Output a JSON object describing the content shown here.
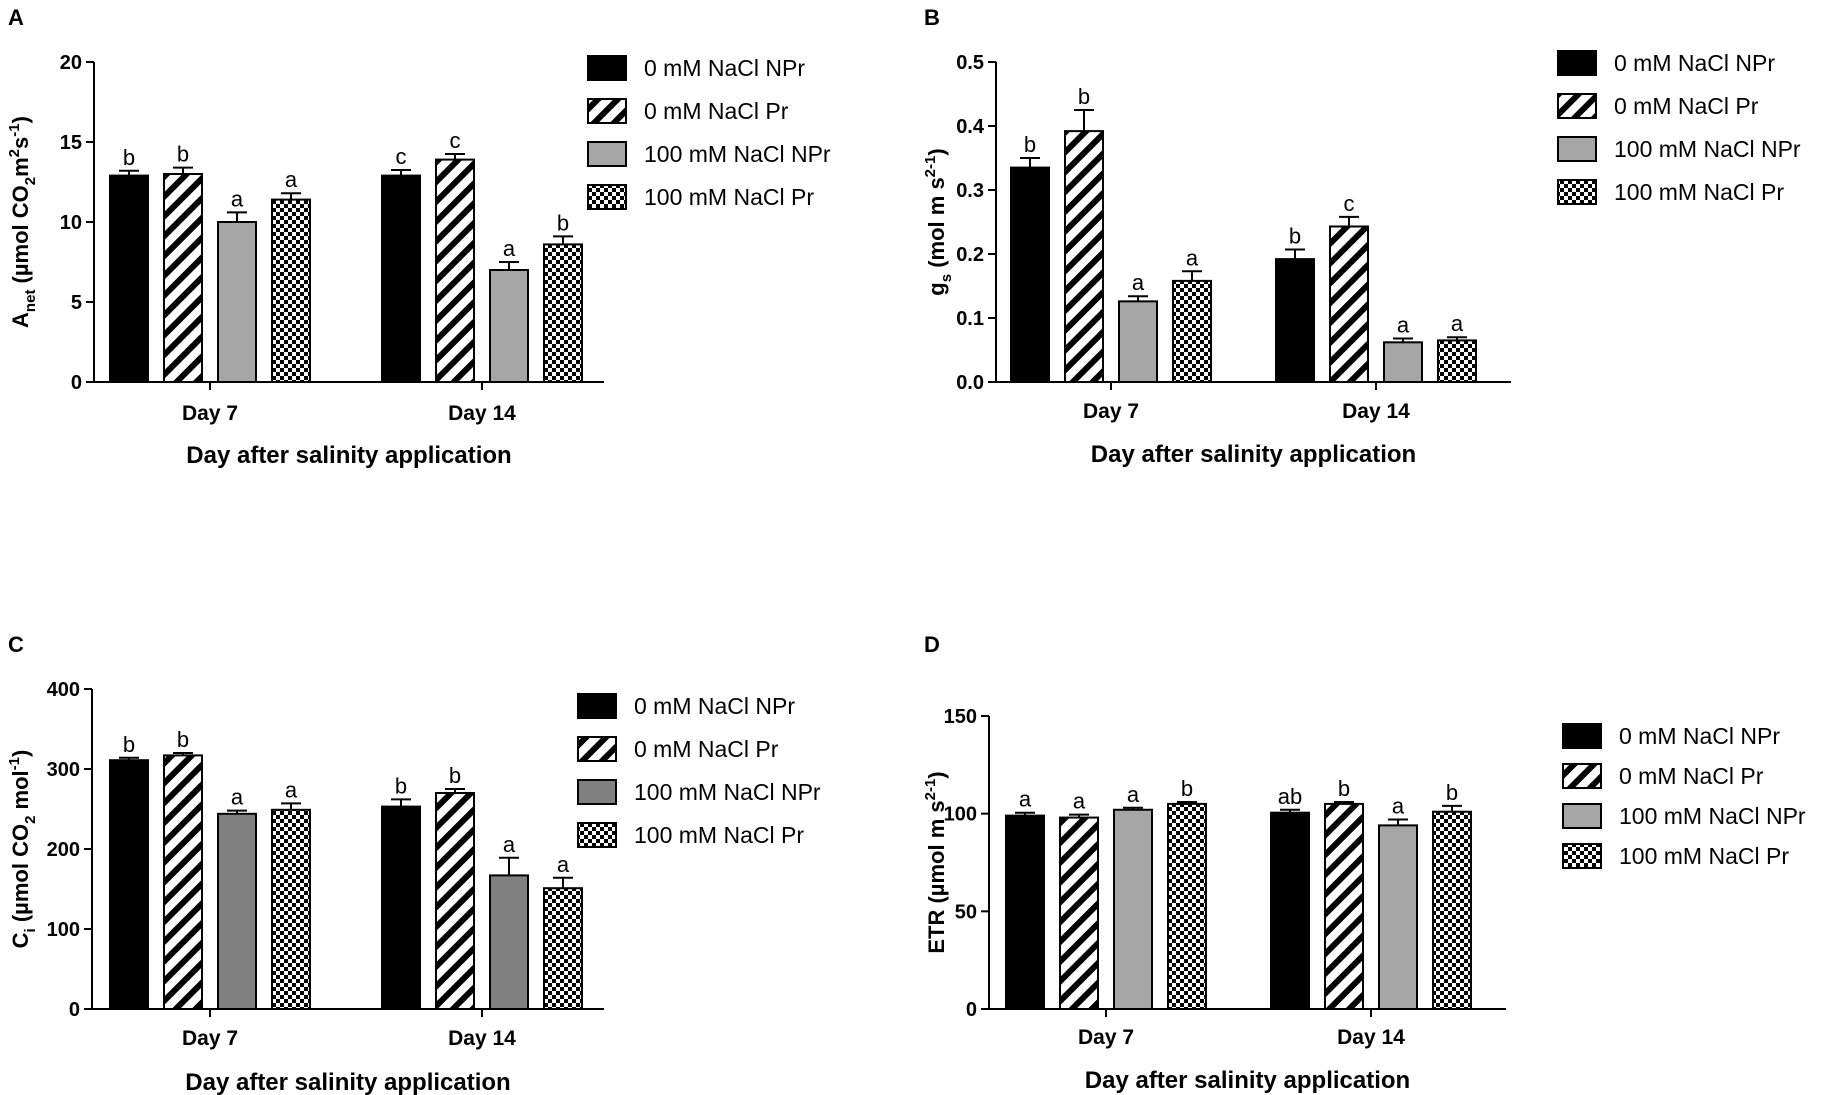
{
  "legend_patterns": [
    "solid-black",
    "diagonal-hatch",
    "solid-grey",
    "checkerboard"
  ],
  "colors": {
    "black": "#000000",
    "grey": "#a6a6a6",
    "dark_grey": "#808080",
    "axis": "#000000"
  },
  "chart_data": [
    {
      "panel": "A",
      "type": "bar",
      "categories": [
        "Day 7",
        "Day 14"
      ],
      "xlabel": "Day after salinity application",
      "ylabel": {
        "main": "A",
        "sub": "net",
        "rest": "  (µmol CO",
        "sub2": "2",
        "tail": "m",
        "sup": "2",
        "tail2": "s",
        "sup2": "-1",
        "end": ")"
      },
      "ylim": [
        0,
        20
      ],
      "yticks": [
        "0",
        "5",
        "10",
        "15",
        "20"
      ],
      "legend_position": "right",
      "series": [
        {
          "name": "0 mM NaCl NPr",
          "pattern": "solid-black",
          "values": [
            12.9,
            12.9
          ],
          "errors": [
            0.3,
            0.35
          ],
          "letters": [
            "b",
            "c"
          ]
        },
        {
          "name": "0 mM NaCl Pr",
          "pattern": "diagonal-hatch",
          "values": [
            13.0,
            13.9
          ],
          "errors": [
            0.4,
            0.35
          ],
          "letters": [
            "b",
            "c"
          ]
        },
        {
          "name": "100 mM NaCl NPr",
          "pattern": "solid-grey",
          "values": [
            10.0,
            7.0
          ],
          "errors": [
            0.6,
            0.5
          ],
          "letters": [
            "a",
            "a"
          ]
        },
        {
          "name": "100 mM NaCl Pr",
          "pattern": "checkerboard",
          "values": [
            11.4,
            8.6
          ],
          "errors": [
            0.4,
            0.5
          ],
          "letters": [
            "a",
            "b"
          ]
        }
      ]
    },
    {
      "panel": "B",
      "type": "bar",
      "categories": [
        "Day 7",
        "Day 14"
      ],
      "xlabel": "Day after salinity application",
      "ylabel": {
        "main": "g",
        "sub": "s",
        "rest": " (mol m",
        "sup": "2",
        "tail": " s",
        "sup2": "-1",
        "end": ")"
      },
      "ylim": [
        0,
        0.5
      ],
      "yticks": [
        "0.0",
        "0.1",
        "0.2",
        "0.3",
        "0.4",
        "0.5"
      ],
      "legend_position": "right",
      "series": [
        {
          "name": "0 mM NaCl NPr",
          "pattern": "solid-black",
          "values": [
            0.335,
            0.192
          ],
          "errors": [
            0.015,
            0.015
          ],
          "letters": [
            "b",
            "b"
          ]
        },
        {
          "name": "0 mM NaCl Pr",
          "pattern": "diagonal-hatch",
          "values": [
            0.392,
            0.243
          ],
          "errors": [
            0.033,
            0.015
          ],
          "letters": [
            "b",
            "c"
          ]
        },
        {
          "name": "100 mM NaCl  NPr",
          "pattern": "solid-grey",
          "values": [
            0.126,
            0.062
          ],
          "errors": [
            0.008,
            0.006
          ],
          "letters": [
            "a",
            "a"
          ]
        },
        {
          "name": "100 mM NaCl  Pr",
          "pattern": "checkerboard",
          "values": [
            0.158,
            0.065
          ],
          "errors": [
            0.015,
            0.005
          ],
          "letters": [
            "a",
            "a"
          ]
        }
      ]
    },
    {
      "panel": "C",
      "type": "bar",
      "categories": [
        "Day 7",
        "Day 14"
      ],
      "xlabel": "Day after salinity application",
      "ylabel": {
        "main": "C",
        "sub": "i",
        "rest": " (µmol CO",
        "sub2": "2",
        "tail": " mol",
        "sup": "-1",
        "end": ")"
      },
      "ylim": [
        0,
        400
      ],
      "yticks": [
        "0",
        "100",
        "200",
        "300",
        "400"
      ],
      "legend_position": "right",
      "series": [
        {
          "name": "0 mM NaCl NPr",
          "pattern": "solid-black",
          "values": [
            311,
            253
          ],
          "errors": [
            3,
            9
          ],
          "letters": [
            "b",
            "b"
          ]
        },
        {
          "name": "0 mM NaCl Pr",
          "pattern": "diagonal-hatch",
          "values": [
            317,
            270
          ],
          "errors": [
            3,
            5
          ],
          "letters": [
            "b",
            "b"
          ]
        },
        {
          "name": "100 mM NaCl NPr",
          "pattern": "solid-dark-grey",
          "values": [
            244,
            167
          ],
          "errors": [
            4,
            22
          ],
          "letters": [
            "a",
            "a"
          ]
        },
        {
          "name": "100 mM NaCl Pr",
          "pattern": "checkerboard",
          "values": [
            249,
            151
          ],
          "errors": [
            8,
            13
          ],
          "letters": [
            "a",
            "a"
          ]
        }
      ]
    },
    {
      "panel": "D",
      "type": "bar",
      "categories": [
        "Day 7",
        "Day 14"
      ],
      "xlabel": "Day after salinity application",
      "ylabel": {
        "main": "ETR (µmol m",
        "sup": "2",
        "tail": " s",
        "sup2": "-1",
        "end": ")"
      },
      "ylim": [
        0,
        150
      ],
      "yticks": [
        "0",
        "50",
        "100",
        "150"
      ],
      "legend_position": "right",
      "series": [
        {
          "name": "0 mM NaCl NPr",
          "pattern": "solid-black",
          "values": [
            99,
            100.5
          ],
          "errors": [
            1.5,
            1.5
          ],
          "letters": [
            "a",
            "ab"
          ]
        },
        {
          "name": "0 mM NaCl Pr",
          "pattern": "diagonal-hatch",
          "values": [
            98,
            105
          ],
          "errors": [
            1.5,
            1
          ],
          "letters": [
            "a",
            "b"
          ]
        },
        {
          "name": "100 mM NaCl NPr",
          "pattern": "solid-grey",
          "values": [
            102,
            94
          ],
          "errors": [
            1,
            3
          ],
          "letters": [
            "a",
            "a"
          ]
        },
        {
          "name": "100 mM NaCl Pr",
          "pattern": "checkerboard",
          "values": [
            105,
            101
          ],
          "errors": [
            1,
            3
          ],
          "letters": [
            "b",
            "b"
          ]
        }
      ]
    }
  ]
}
